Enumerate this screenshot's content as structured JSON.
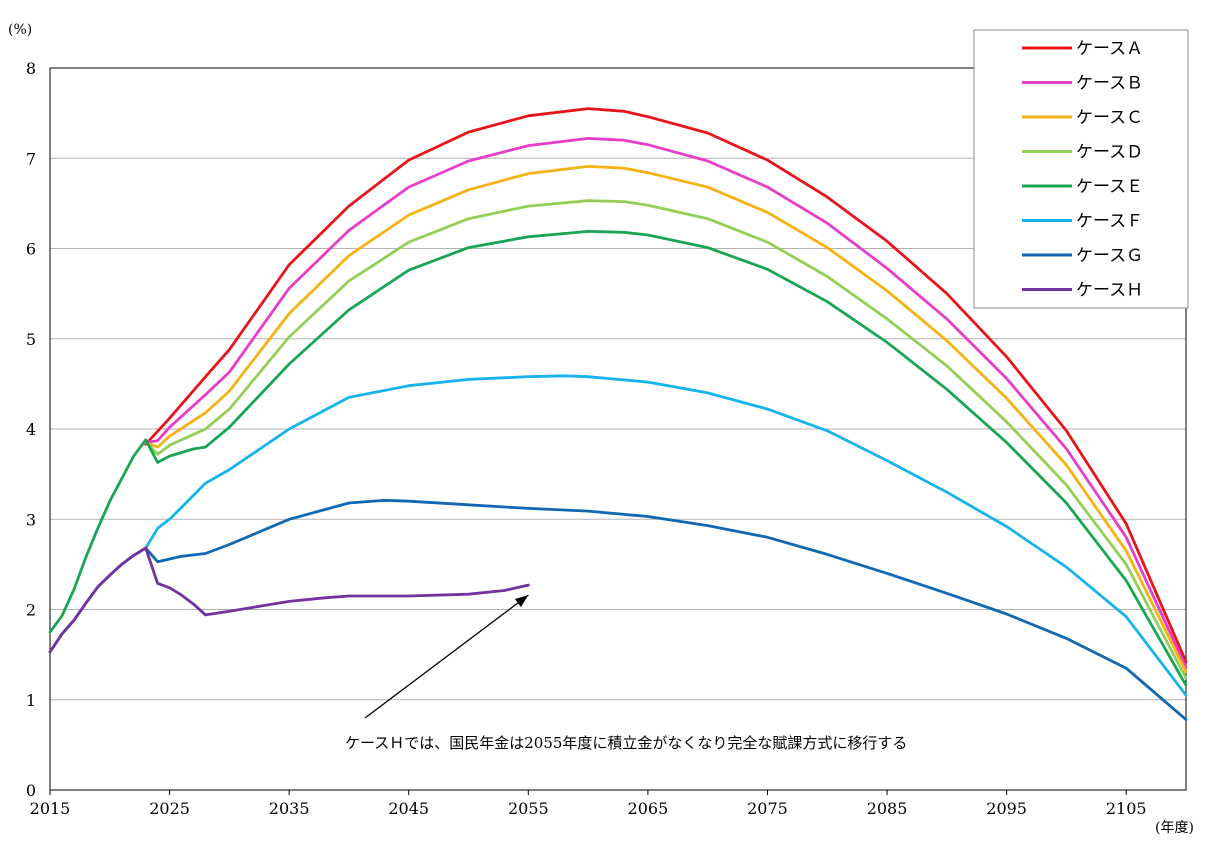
{
  "chart_data": {
    "type": "line",
    "ylabel": "(%)",
    "xlabel": "(年度)",
    "xlim": [
      2015,
      2110
    ],
    "ylim": [
      0,
      8
    ],
    "x_ticks": [
      "2015",
      "2025",
      "2035",
      "2045",
      "2055",
      "2065",
      "2075",
      "2085",
      "2095",
      "2105"
    ],
    "y_ticks": [
      "0",
      "1",
      "2",
      "3",
      "4",
      "5",
      "6",
      "7",
      "8"
    ],
    "grid": "horizontal",
    "legend_position": "top-right",
    "series": [
      {
        "name": "ケースＡ",
        "color": "#e8141b",
        "points": [
          [
            2023,
            3.83
          ],
          [
            2025,
            4.12
          ],
          [
            2028,
            4.58
          ],
          [
            2030,
            4.88
          ],
          [
            2035,
            5.82
          ],
          [
            2040,
            6.47
          ],
          [
            2045,
            6.98
          ],
          [
            2050,
            7.29
          ],
          [
            2055,
            7.47
          ],
          [
            2060,
            7.55
          ],
          [
            2063,
            7.52
          ],
          [
            2065,
            7.46
          ],
          [
            2070,
            7.28
          ],
          [
            2075,
            6.98
          ],
          [
            2080,
            6.57
          ],
          [
            2085,
            6.08
          ],
          [
            2090,
            5.5
          ],
          [
            2095,
            4.8
          ],
          [
            2100,
            3.98
          ],
          [
            2105,
            2.95
          ],
          [
            2110,
            1.42
          ]
        ]
      },
      {
        "name": "ケースＢ",
        "color": "#e73dc8",
        "points": [
          [
            2023,
            3.85
          ],
          [
            2024,
            3.87
          ],
          [
            2025,
            4.02
          ],
          [
            2028,
            4.38
          ],
          [
            2030,
            4.63
          ],
          [
            2035,
            5.56
          ],
          [
            2040,
            6.2
          ],
          [
            2045,
            6.68
          ],
          [
            2050,
            6.97
          ],
          [
            2055,
            7.14
          ],
          [
            2060,
            7.22
          ],
          [
            2063,
            7.2
          ],
          [
            2065,
            7.15
          ],
          [
            2070,
            6.97
          ],
          [
            2075,
            6.68
          ],
          [
            2080,
            6.28
          ],
          [
            2085,
            5.78
          ],
          [
            2090,
            5.22
          ],
          [
            2095,
            4.56
          ],
          [
            2100,
            3.78
          ],
          [
            2105,
            2.8
          ],
          [
            2110,
            1.36
          ]
        ]
      },
      {
        "name": "ケースＣ",
        "color": "#f5b213",
        "points": [
          [
            2023,
            3.85
          ],
          [
            2024,
            3.8
          ],
          [
            2025,
            3.92
          ],
          [
            2028,
            4.18
          ],
          [
            2030,
            4.42
          ],
          [
            2035,
            5.28
          ],
          [
            2040,
            5.92
          ],
          [
            2045,
            6.37
          ],
          [
            2050,
            6.65
          ],
          [
            2055,
            6.83
          ],
          [
            2060,
            6.91
          ],
          [
            2063,
            6.89
          ],
          [
            2065,
            6.84
          ],
          [
            2070,
            6.68
          ],
          [
            2075,
            6.4
          ],
          [
            2080,
            6.01
          ],
          [
            2085,
            5.53
          ],
          [
            2090,
            4.98
          ],
          [
            2095,
            4.34
          ],
          [
            2100,
            3.6
          ],
          [
            2105,
            2.65
          ],
          [
            2110,
            1.31
          ]
        ]
      },
      {
        "name": "ケースＤ",
        "color": "#93cf55",
        "points": [
          [
            2023,
            3.86
          ],
          [
            2024,
            3.72
          ],
          [
            2025,
            3.82
          ],
          [
            2028,
            4.0
          ],
          [
            2030,
            4.22
          ],
          [
            2035,
            5.02
          ],
          [
            2040,
            5.64
          ],
          [
            2045,
            6.07
          ],
          [
            2050,
            6.33
          ],
          [
            2055,
            6.47
          ],
          [
            2060,
            6.53
          ],
          [
            2063,
            6.52
          ],
          [
            2065,
            6.48
          ],
          [
            2070,
            6.33
          ],
          [
            2075,
            6.07
          ],
          [
            2080,
            5.69
          ],
          [
            2085,
            5.22
          ],
          [
            2090,
            4.7
          ],
          [
            2095,
            4.08
          ],
          [
            2100,
            3.38
          ],
          [
            2105,
            2.5
          ],
          [
            2110,
            1.24
          ]
        ]
      },
      {
        "name": "ケースＥ",
        "color": "#19a553",
        "points": [
          [
            2015,
            1.75
          ],
          [
            2016,
            1.93
          ],
          [
            2017,
            2.22
          ],
          [
            2018,
            2.58
          ],
          [
            2019,
            2.9
          ],
          [
            2020,
            3.2
          ],
          [
            2021,
            3.45
          ],
          [
            2022,
            3.7
          ],
          [
            2023,
            3.88
          ],
          [
            2024,
            3.63
          ],
          [
            2025,
            3.7
          ],
          [
            2027,
            3.78
          ],
          [
            2028,
            3.8
          ],
          [
            2030,
            4.02
          ],
          [
            2035,
            4.72
          ],
          [
            2040,
            5.32
          ],
          [
            2045,
            5.76
          ],
          [
            2050,
            6.01
          ],
          [
            2055,
            6.13
          ],
          [
            2060,
            6.19
          ],
          [
            2063,
            6.18
          ],
          [
            2065,
            6.15
          ],
          [
            2070,
            6.01
          ],
          [
            2075,
            5.77
          ],
          [
            2080,
            5.41
          ],
          [
            2085,
            4.96
          ],
          [
            2090,
            4.44
          ],
          [
            2095,
            3.85
          ],
          [
            2100,
            3.18
          ],
          [
            2105,
            2.32
          ],
          [
            2110,
            1.16
          ]
        ]
      },
      {
        "name": "ケースＦ",
        "color": "#16b3ec",
        "points": [
          [
            2023,
            2.68
          ],
          [
            2024,
            2.9
          ],
          [
            2025,
            3.0
          ],
          [
            2028,
            3.4
          ],
          [
            2030,
            3.55
          ],
          [
            2035,
            4.0
          ],
          [
            2040,
            4.35
          ],
          [
            2045,
            4.48
          ],
          [
            2050,
            4.55
          ],
          [
            2055,
            4.58
          ],
          [
            2058,
            4.59
          ],
          [
            2060,
            4.58
          ],
          [
            2065,
            4.52
          ],
          [
            2070,
            4.4
          ],
          [
            2075,
            4.22
          ],
          [
            2080,
            3.98
          ],
          [
            2085,
            3.65
          ],
          [
            2090,
            3.3
          ],
          [
            2095,
            2.92
          ],
          [
            2100,
            2.47
          ],
          [
            2105,
            1.92
          ],
          [
            2110,
            1.05
          ]
        ]
      },
      {
        "name": "ケースＧ",
        "color": "#1168b2",
        "points": [
          [
            2015,
            1.53
          ],
          [
            2016,
            1.73
          ],
          [
            2017,
            1.88
          ],
          [
            2018,
            2.07
          ],
          [
            2019,
            2.25
          ],
          [
            2020,
            2.38
          ],
          [
            2021,
            2.5
          ],
          [
            2022,
            2.6
          ],
          [
            2023,
            2.68
          ],
          [
            2024,
            2.53
          ],
          [
            2025,
            2.56
          ],
          [
            2026,
            2.59
          ],
          [
            2028,
            2.62
          ],
          [
            2030,
            2.72
          ],
          [
            2035,
            3.0
          ],
          [
            2040,
            3.18
          ],
          [
            2043,
            3.21
          ],
          [
            2045,
            3.2
          ],
          [
            2050,
            3.16
          ],
          [
            2055,
            3.12
          ],
          [
            2060,
            3.09
          ],
          [
            2065,
            3.03
          ],
          [
            2070,
            2.93
          ],
          [
            2075,
            2.8
          ],
          [
            2080,
            2.61
          ],
          [
            2085,
            2.4
          ],
          [
            2090,
            2.18
          ],
          [
            2095,
            1.95
          ],
          [
            2100,
            1.68
          ],
          [
            2105,
            1.35
          ],
          [
            2110,
            0.78
          ]
        ]
      },
      {
        "name": "ケースＨ",
        "color": "#7431a0",
        "points": [
          [
            2015,
            1.53
          ],
          [
            2016,
            1.73
          ],
          [
            2017,
            1.88
          ],
          [
            2018,
            2.07
          ],
          [
            2019,
            2.25
          ],
          [
            2020,
            2.38
          ],
          [
            2021,
            2.5
          ],
          [
            2022,
            2.6
          ],
          [
            2023,
            2.68
          ],
          [
            2024,
            2.29
          ],
          [
            2025,
            2.24
          ],
          [
            2026,
            2.16
          ],
          [
            2027,
            2.06
          ],
          [
            2028,
            1.94
          ],
          [
            2030,
            1.98
          ],
          [
            2035,
            2.09
          ],
          [
            2038,
            2.13
          ],
          [
            2040,
            2.15
          ],
          [
            2045,
            2.15
          ],
          [
            2050,
            2.17
          ],
          [
            2053,
            2.21
          ],
          [
            2055,
            2.27
          ]
        ]
      }
    ],
    "annotation": {
      "text": "ケースＨでは、国民年金は2055年度に積立金がなくなり完全な賦課方式に移行する",
      "arrow_to": [
        2055,
        2.27
      ]
    }
  }
}
